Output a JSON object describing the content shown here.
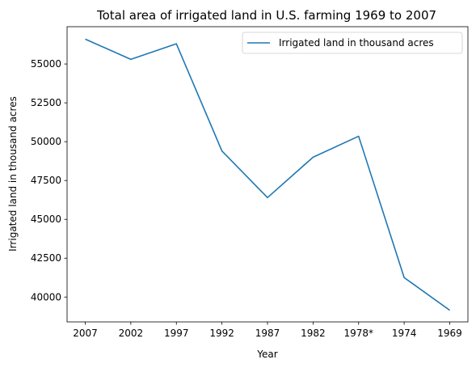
{
  "chart_data": {
    "type": "line",
    "title": "Total area of irrigated land in U.S. farming 1969 to 2007",
    "xlabel": "Year",
    "ylabel": "Irrigated land in thousand acres",
    "categories": [
      "2007",
      "2002",
      "1997",
      "1992",
      "1987",
      "1982",
      "1978*",
      "1974",
      "1969"
    ],
    "series": [
      {
        "name": "Irrigated land in thousand acres",
        "color": "#1f77b4",
        "values": [
          56600,
          55300,
          56300,
          49400,
          46400,
          49000,
          50350,
          41250,
          39150
        ]
      }
    ],
    "y_ticks": [
      40000,
      42500,
      45000,
      47500,
      50000,
      52500,
      55000
    ],
    "ylim": [
      38400,
      57400
    ],
    "grid": false,
    "legend_position": "top-right"
  }
}
